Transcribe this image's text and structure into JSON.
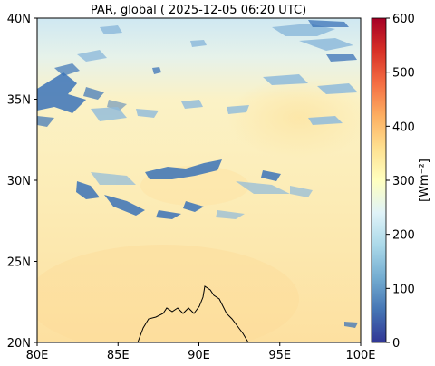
{
  "title": "PAR, global ( 2025-12-05 06:20 UTC)",
  "colorbar": {
    "label": "[Wm⁻²]",
    "ticks": [
      "0",
      "100",
      "200",
      "300",
      "400",
      "500",
      "600"
    ],
    "range": [
      0,
      600
    ],
    "colormap": "RdYlBu_r",
    "colors": [
      "#313695",
      "#4575b4",
      "#74add1",
      "#abd9e9",
      "#e0f3f8",
      "#ffffbf",
      "#fee090",
      "#fdae61",
      "#f46d43",
      "#d73027",
      "#a50026"
    ]
  },
  "axes": {
    "x_ticks": [
      "80E",
      "85E",
      "90E",
      "95E",
      "100E"
    ],
    "y_ticks": [
      "20N",
      "25N",
      "30N",
      "35N",
      "40N"
    ],
    "x_range_deg_e": [
      80,
      100
    ],
    "y_range_deg_n": [
      20,
      40
    ]
  },
  "map": {
    "colors": {
      "sky_light_blue": "#d4ebf2",
      "pale_yellow": "#fbf2c4",
      "warm_yellow": "#fce6a8",
      "cloud_blue": "#3b73b8",
      "cloud_light": "#8fbbdc",
      "coastline": "#000000"
    }
  }
}
